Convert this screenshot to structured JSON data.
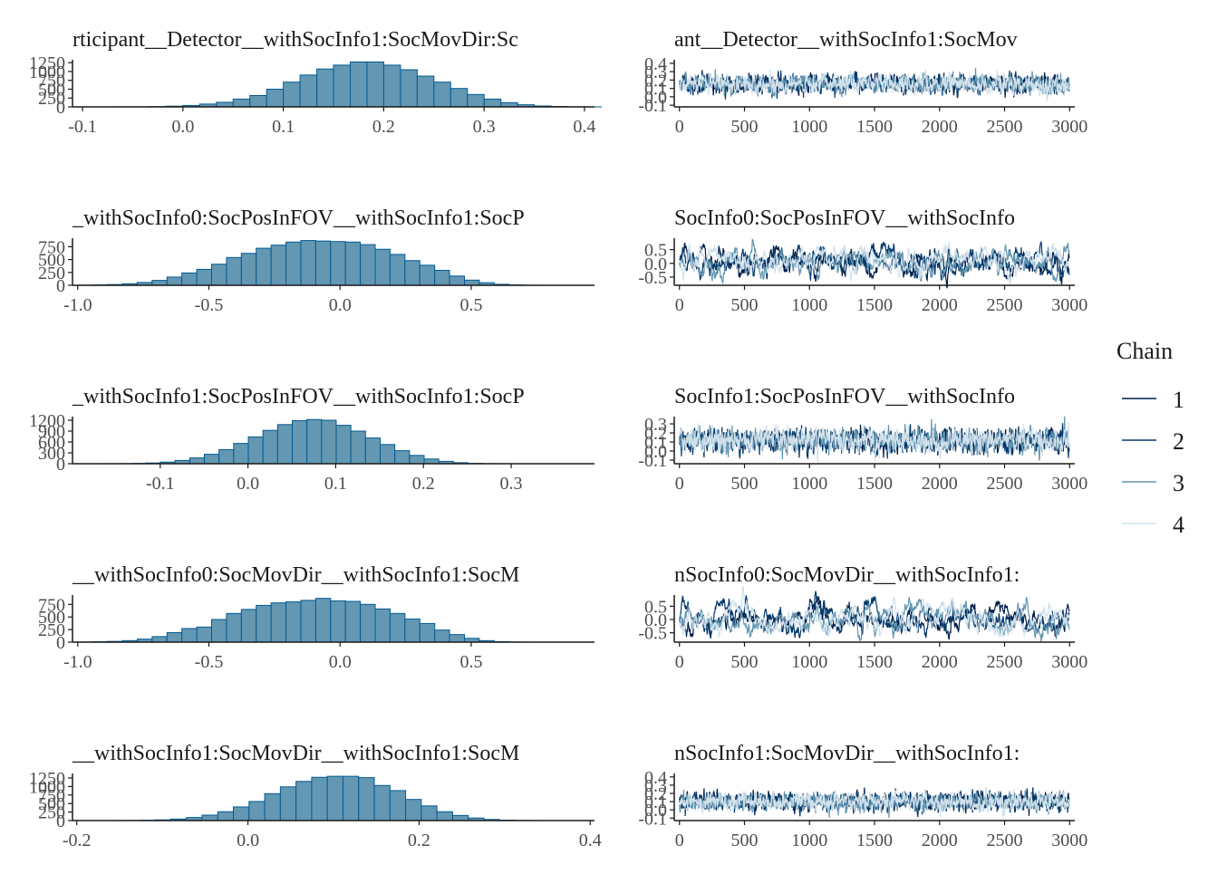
{
  "legend": {
    "title": "Chain",
    "entries": [
      {
        "label": "1",
        "color": "#011f4b"
      },
      {
        "label": "2",
        "color": "#03396c"
      },
      {
        "label": "3",
        "color": "#6497b1"
      },
      {
        "label": "4",
        "color": "#d1e1ec"
      }
    ]
  },
  "colors": {
    "hist_fill": "#6497b1",
    "hist_stroke": "#005b96",
    "axis": "#1a1a1a"
  },
  "chart_data": [
    {
      "type": "bar",
      "title": "rticipant__Detector__withSocInfo1:SocMovDir:Sc",
      "x_ticks": [
        "-0.1",
        "0.0",
        "0.1",
        "0.2",
        "0.3",
        "0.4"
      ],
      "x_tick_values": [
        -0.1,
        0.0,
        0.1,
        0.2,
        0.3,
        0.4
      ],
      "xlim": [
        -0.11,
        0.41
      ],
      "y_ticks": [
        "0",
        "250",
        "500",
        "750",
        "1000",
        "1250"
      ],
      "y_tick_values": [
        0,
        250,
        500,
        750,
        1000,
        1250
      ],
      "ylim": [
        0,
        1280
      ],
      "bin_start": -0.1,
      "bin_width": 0.01667,
      "values": [
        0,
        0,
        1,
        3,
        8,
        20,
        40,
        80,
        130,
        220,
        320,
        500,
        700,
        900,
        1070,
        1180,
        1270,
        1270,
        1180,
        1050,
        870,
        700,
        520,
        350,
        220,
        120,
        60,
        25,
        10,
        3,
        1
      ]
    },
    {
      "type": "line",
      "title": "ant__Detector__withSocInfo1:SocMov",
      "x_ticks": [
        "0",
        "500",
        "1000",
        "1500",
        "2000",
        "2500",
        "3000"
      ],
      "x_tick_values": [
        0,
        500,
        1000,
        1500,
        2000,
        2500,
        3000
      ],
      "xlim": [
        -40,
        3040
      ],
      "y_ticks": [
        "-0.1",
        "0.0",
        "0.1",
        "0.2",
        "0.3",
        "0.4"
      ],
      "y_tick_values": [
        -0.1,
        0.0,
        0.1,
        0.2,
        0.3,
        0.4
      ],
      "ylim": [
        -0.12,
        0.42
      ],
      "series_center": 0.155,
      "series_sd": 0.055,
      "series_autocorr": 0.35,
      "series": [
        {
          "name": "1",
          "color": "#011f4b"
        },
        {
          "name": "2",
          "color": "#03396c"
        },
        {
          "name": "3",
          "color": "#6497b1"
        },
        {
          "name": "4",
          "color": "#d1e1ec"
        }
      ]
    },
    {
      "type": "bar",
      "title": "_withSocInfo0:SocPosInFOV__withSocInfo1:SocP",
      "x_ticks": [
        "-1.0",
        "-0.5",
        "0.0",
        "0.5"
      ],
      "x_tick_values": [
        -1.0,
        -0.5,
        0.0,
        0.5
      ],
      "xlim": [
        -1.02,
        0.97
      ],
      "y_ticks": [
        "0",
        "250",
        "500",
        "750"
      ],
      "y_tick_values": [
        0,
        250,
        500,
        750
      ],
      "ylim": [
        0,
        880
      ],
      "bin_start": -1.0,
      "bin_width": 0.0567,
      "values": [
        3,
        8,
        15,
        30,
        55,
        95,
        160,
        240,
        310,
        410,
        540,
        620,
        720,
        780,
        840,
        870,
        860,
        850,
        840,
        790,
        700,
        600,
        480,
        390,
        290,
        180,
        100,
        50,
        20,
        8,
        2
      ]
    },
    {
      "type": "line",
      "title": "SocInfo0:SocPosInFOV__withSocInfo",
      "x_ticks": [
        "0",
        "500",
        "1000",
        "1500",
        "2000",
        "2500",
        "3000"
      ],
      "x_tick_values": [
        0,
        500,
        1000,
        1500,
        2000,
        2500,
        3000
      ],
      "xlim": [
        -40,
        3040
      ],
      "y_ticks": [
        "-0.5",
        "0.0",
        "0.5"
      ],
      "y_tick_values": [
        -0.5,
        0.0,
        0.5
      ],
      "ylim": [
        -0.8,
        0.85
      ],
      "series_center": 0.05,
      "series_sd": 0.28,
      "series_autocorr": 0.9,
      "series": [
        {
          "name": "1",
          "color": "#011f4b"
        },
        {
          "name": "2",
          "color": "#03396c"
        },
        {
          "name": "3",
          "color": "#6497b1"
        },
        {
          "name": "4",
          "color": "#d1e1ec"
        }
      ]
    },
    {
      "type": "bar",
      "title": "_withSocInfo1:SocPosInFOV__withSocInfo1:SocP",
      "x_ticks": [
        "-0.1",
        "0.0",
        "0.1",
        "0.2",
        "0.3"
      ],
      "x_tick_values": [
        -0.1,
        0.0,
        0.1,
        0.2,
        0.3
      ],
      "xlim": [
        -0.2,
        0.395
      ],
      "y_ticks": [
        "0",
        "300",
        "600",
        "900",
        "1200"
      ],
      "y_tick_values": [
        0,
        300,
        600,
        900,
        1200
      ],
      "ylim": [
        0,
        1250
      ],
      "bin_start": -0.2,
      "bin_width": 0.0167,
      "values": [
        0,
        0,
        1,
        3,
        8,
        20,
        45,
        90,
        160,
        260,
        390,
        560,
        740,
        920,
        1080,
        1190,
        1220,
        1200,
        1060,
        900,
        710,
        530,
        360,
        230,
        130,
        65,
        28,
        10,
        3,
        1,
        0
      ]
    },
    {
      "type": "line",
      "title": "SocInfo1:SocPosInFOV__withSocInfo",
      "x_ticks": [
        "0",
        "500",
        "1000",
        "1500",
        "2000",
        "2500",
        "3000"
      ],
      "x_tick_values": [
        0,
        500,
        1000,
        1500,
        2000,
        2500,
        3000
      ],
      "xlim": [
        -40,
        3040
      ],
      "y_ticks": [
        "-0.1",
        "0.0",
        "0.1",
        "0.2",
        "0.3"
      ],
      "y_tick_values": [
        -0.1,
        0.0,
        0.1,
        0.2,
        0.3
      ],
      "ylim": [
        -0.14,
        0.36
      ],
      "series_center": 0.115,
      "series_sd": 0.065,
      "series_autocorr": 0.35,
      "series": [
        {
          "name": "1",
          "color": "#011f4b"
        },
        {
          "name": "2",
          "color": "#03396c"
        },
        {
          "name": "3",
          "color": "#6497b1"
        },
        {
          "name": "4",
          "color": "#d1e1ec"
        }
      ]
    },
    {
      "type": "bar",
      "title": "__withSocInfo0:SocMovDir__withSocInfo1:SocM",
      "x_ticks": [
        "-1.0",
        "-0.5",
        "0.0",
        "0.5"
      ],
      "x_tick_values": [
        -1.0,
        -0.5,
        0.0,
        0.5
      ],
      "xlim": [
        -1.02,
        0.97
      ],
      "y_ticks": [
        "0",
        "250",
        "500",
        "750"
      ],
      "y_tick_values": [
        0,
        250,
        500,
        750
      ],
      "ylim": [
        0,
        900
      ],
      "bin_start": -1.0,
      "bin_width": 0.0567,
      "values": [
        3,
        8,
        15,
        30,
        60,
        110,
        190,
        270,
        300,
        450,
        570,
        650,
        730,
        780,
        800,
        830,
        870,
        820,
        810,
        750,
        660,
        570,
        460,
        370,
        240,
        150,
        75,
        30,
        10,
        3,
        1
      ]
    },
    {
      "type": "line",
      "title": "nSocInfo0:SocMovDir__withSocInfo1:",
      "x_ticks": [
        "0",
        "500",
        "1000",
        "1500",
        "2000",
        "2500",
        "3000"
      ],
      "x_tick_values": [
        0,
        500,
        1000,
        1500,
        2000,
        2500,
        3000
      ],
      "xlim": [
        -40,
        3040
      ],
      "y_ticks": [
        "-0.5",
        "0.0",
        "0.5"
      ],
      "y_tick_values": [
        -0.5,
        0.0,
        0.5
      ],
      "ylim": [
        -0.85,
        0.85
      ],
      "series_center": 0.02,
      "series_sd": 0.3,
      "series_autocorr": 0.92,
      "series": [
        {
          "name": "1",
          "color": "#011f4b"
        },
        {
          "name": "2",
          "color": "#03396c"
        },
        {
          "name": "3",
          "color": "#6497b1"
        },
        {
          "name": "4",
          "color": "#d1e1ec"
        }
      ]
    },
    {
      "type": "bar",
      "title": "__withSocInfo1:SocMovDir__withSocInfo1:SocM",
      "x_ticks": [
        "-0.2",
        "0.0",
        "0.2",
        "0.4"
      ],
      "x_tick_values": [
        -0.2,
        0.0,
        0.2,
        0.4
      ],
      "xlim": [
        -0.205,
        0.405
      ],
      "y_ticks": [
        "0",
        "250",
        "500",
        "750",
        "1000",
        "1250"
      ],
      "y_tick_values": [
        0,
        250,
        500,
        750,
        1000,
        1250
      ],
      "ylim": [
        0,
        1330
      ],
      "bin_start": -0.2,
      "bin_width": 0.0183,
      "values": [
        0,
        0,
        1,
        3,
        8,
        20,
        45,
        90,
        160,
        260,
        400,
        560,
        790,
        990,
        1150,
        1270,
        1300,
        1300,
        1260,
        1030,
        880,
        620,
        430,
        260,
        150,
        75,
        32,
        12,
        4,
        1,
        0
      ]
    },
    {
      "type": "line",
      "title": "nSocInfo1:SocMovDir__withSocInfo1:",
      "x_ticks": [
        "0",
        "500",
        "1000",
        "1500",
        "2000",
        "2500",
        "3000"
      ],
      "x_tick_values": [
        0,
        500,
        1000,
        1500,
        2000,
        2500,
        3000
      ],
      "xlim": [
        -40,
        3040
      ],
      "y_ticks": [
        "-0.1",
        "0.0",
        "0.1",
        "0.2",
        "0.3",
        "0.4"
      ],
      "y_tick_values": [
        -0.1,
        0.0,
        0.1,
        0.2,
        0.3,
        0.4
      ],
      "ylim": [
        -0.13,
        0.42
      ],
      "series_center": 0.1,
      "series_sd": 0.055,
      "series_autocorr": 0.35,
      "series": [
        {
          "name": "1",
          "color": "#011f4b"
        },
        {
          "name": "2",
          "color": "#03396c"
        },
        {
          "name": "3",
          "color": "#6497b1"
        },
        {
          "name": "4",
          "color": "#d1e1ec"
        }
      ]
    }
  ]
}
